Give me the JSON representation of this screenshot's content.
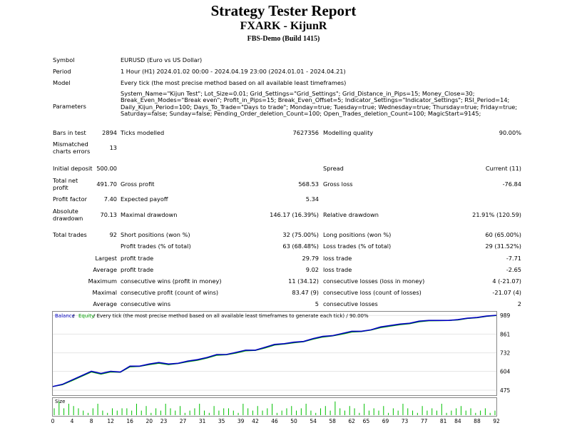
{
  "header": {
    "title": "Strategy Tester Report",
    "subtitle": "FXARK - KijunR",
    "server": "FBS-Demo (Build 1415)"
  },
  "info": {
    "symbol_label": "Symbol",
    "symbol_value": "EURUSD (Euro vs US Dollar)",
    "period_label": "Period",
    "period_value": "1 Hour (H1) 2024.01.02 00:00 - 2024.04.19 23:00 (2024.01.01 - 2024.04.21)",
    "model_label": "Model",
    "model_value": "Every tick (the most precise method based on all available least timeframes)",
    "parameters_label": "Parameters",
    "parameters_value": "System_Name=\"Kijun Test\"; Lot_Size=0.01; Grid_Settings=\"Grid_Settings\"; Grid_Distance_in_Pips=15; Money_Close=30; Break_Even_Modes=\"Break even\"; Profit_in_Pips=15; Break_Even_Offset=5; Indicator_Settings=\"Indicator_Settings\"; RSI_Period=14; Daily_Kijun_Period=100; Days_To_Trade=\"Days to trade\"; Monday=true; Tuesday=true; Wednesday=true; Thursday=true; Friday=true; Saturday=false; Sunday=false; Pending_Order_deletion_Count=100; Open_Trades_deletion_Count=100; MagicStart=9145;"
  },
  "stats": {
    "bars_label": "Bars in test",
    "bars_value": "2894",
    "ticks_label": "Ticks modelled",
    "ticks_value": "7627356",
    "quality_label": "Modelling quality",
    "quality_value": "90.00%",
    "mismatch_label_1": "Mismatched",
    "mismatch_label_2": "charts errors",
    "mismatch_value": "13",
    "deposit_label": "Initial deposit",
    "deposit_value": "500.00",
    "spread_label": "Spread",
    "spread_value": "Current (11)",
    "netprofit_label_1": "Total net",
    "netprofit_label_2": "profit",
    "netprofit_value": "491.70",
    "grossprofit_label": "Gross profit",
    "grossprofit_value": "568.53",
    "grossloss_label": "Gross loss",
    "grossloss_value": "-76.84",
    "pf_label": "Profit factor",
    "pf_value": "7.40",
    "payoff_label": "Expected payoff",
    "payoff_value": "5.34",
    "absdd_label_1": "Absolute",
    "absdd_label_2": "drawdown",
    "absdd_value": "70.13",
    "maxdd_label": "Maximal drawdown",
    "maxdd_value": "146.17 (16.39%)",
    "reldd_label": "Relative drawdown",
    "reldd_value": "21.91% (120.59)",
    "trades_label": "Total trades",
    "trades_value": "92",
    "short_label": "Short positions (won %)",
    "short_value": "32 (75.00%)",
    "long_label": "Long positions (won %)",
    "long_value": "60 (65.00%)",
    "profit_trades_label": "Profit trades (% of total)",
    "profit_trades_value": "63 (68.48%)",
    "loss_trades_label": "Loss trades (% of total)",
    "loss_trades_value": "29 (31.52%)",
    "largest_label": "Largest",
    "largest_profit_label": "profit trade",
    "largest_profit_value": "29.79",
    "largest_loss_label": "loss trade",
    "largest_loss_value": "-7.71",
    "average_label": "Average",
    "average_profit_label": "profit trade",
    "average_profit_value": "9.02",
    "average_loss_label": "loss trade",
    "average_loss_value": "-2.65",
    "maximum_label": "Maximum",
    "max_cons_wins_label": "consecutive wins (profit in money)",
    "max_cons_wins_value": "11 (34.12)",
    "max_cons_losses_label": "consecutive losses (loss in money)",
    "max_cons_losses_value": "4 (-21.07)",
    "maximal_label": "Maximal",
    "maximal_profit_label": "consecutive profit (count of wins)",
    "maximal_profit_value": "83.47 (9)",
    "maximal_loss_label": "consecutive loss (count of losses)",
    "maximal_loss_value": "-21.07 (4)",
    "average2_label": "Average",
    "avg_cons_wins_label": "consecutive wins",
    "avg_cons_wins_value": "5",
    "avg_cons_losses_label": "consecutive losses",
    "avg_cons_losses_value": "2"
  },
  "chart_legend": {
    "balance": "Balance",
    "sep": " / ",
    "equity": "Equity",
    "rest": " / Every tick (the most precise method based on all available least timeframes to generate each tick) / 90.00%",
    "size_label": "Size",
    "balance_color": "#0000c0",
    "equity_color": "#00a000",
    "size_bar_color": "#00c000"
  },
  "chart_data": {
    "type": "line",
    "ylim": [
      460,
      1000
    ],
    "yticks": [
      475,
      604,
      732,
      861,
      989
    ],
    "xlim": [
      0,
      92
    ],
    "xticks": [
      0,
      4,
      8,
      12,
      16,
      20,
      23,
      27,
      31,
      35,
      39,
      42,
      46,
      50,
      54,
      58,
      62,
      65,
      69,
      73,
      77,
      81,
      84,
      88,
      92
    ],
    "series": [
      {
        "key": "balance",
        "x": [
          0,
          2,
          4,
          6,
          8,
          10,
          12,
          14,
          16,
          18,
          20,
          22,
          24,
          26,
          28,
          30,
          32,
          34,
          36,
          38,
          40,
          42,
          44,
          46,
          48,
          50,
          52,
          54,
          56,
          58,
          60,
          62,
          64,
          66,
          68,
          70,
          72,
          74,
          76,
          78,
          80,
          82,
          84,
          86,
          88,
          90,
          92
        ],
        "y": [
          500,
          515,
          545,
          575,
          605,
          590,
          605,
          600,
          640,
          640,
          655,
          665,
          655,
          660,
          675,
          685,
          700,
          720,
          720,
          735,
          750,
          750,
          770,
          790,
          795,
          805,
          810,
          830,
          845,
          850,
          865,
          880,
          880,
          890,
          910,
          920,
          930,
          935,
          950,
          955,
          955,
          955,
          960,
          970,
          975,
          985,
          990
        ]
      },
      {
        "key": "equity",
        "x": [
          0,
          2,
          4,
          6,
          8,
          10,
          12,
          14,
          16,
          18,
          20,
          22,
          24,
          26,
          28,
          30,
          32,
          34,
          36,
          38,
          40,
          42,
          44,
          46,
          48,
          50,
          52,
          54,
          56,
          58,
          60,
          62,
          64,
          66,
          68,
          70,
          72,
          74,
          76,
          78,
          80,
          82,
          84,
          86,
          88,
          90,
          92
        ],
        "y": [
          500,
          512,
          540,
          570,
          600,
          585,
          600,
          598,
          635,
          638,
          650,
          660,
          650,
          658,
          670,
          680,
          695,
          715,
          718,
          730,
          745,
          748,
          765,
          785,
          792,
          800,
          808,
          825,
          840,
          848,
          860,
          875,
          878,
          888,
          905,
          915,
          925,
          932,
          945,
          952,
          953,
          954,
          958,
          968,
          973,
          983,
          988
        ]
      }
    ],
    "size_bars": [
      3,
      6,
      3,
      5,
      4,
      3,
      2,
      1,
      3,
      5,
      2,
      1,
      3,
      2,
      3,
      3,
      2,
      5,
      2,
      4,
      1,
      3,
      2,
      5,
      3,
      2,
      4,
      1,
      2,
      3,
      5,
      2,
      1,
      4,
      2,
      3,
      3,
      2,
      1,
      5,
      3,
      2,
      4,
      2,
      3,
      5,
      1,
      2,
      3,
      4,
      2,
      3,
      5,
      2,
      1,
      3,
      4,
      2,
      6,
      3,
      2,
      4,
      3,
      1,
      5,
      2,
      3,
      2,
      4,
      1,
      3,
      2,
      5,
      3,
      2,
      1,
      4,
      2,
      3,
      2,
      5,
      1,
      2,
      3,
      4,
      2,
      3,
      1,
      2,
      3,
      1,
      2
    ]
  }
}
